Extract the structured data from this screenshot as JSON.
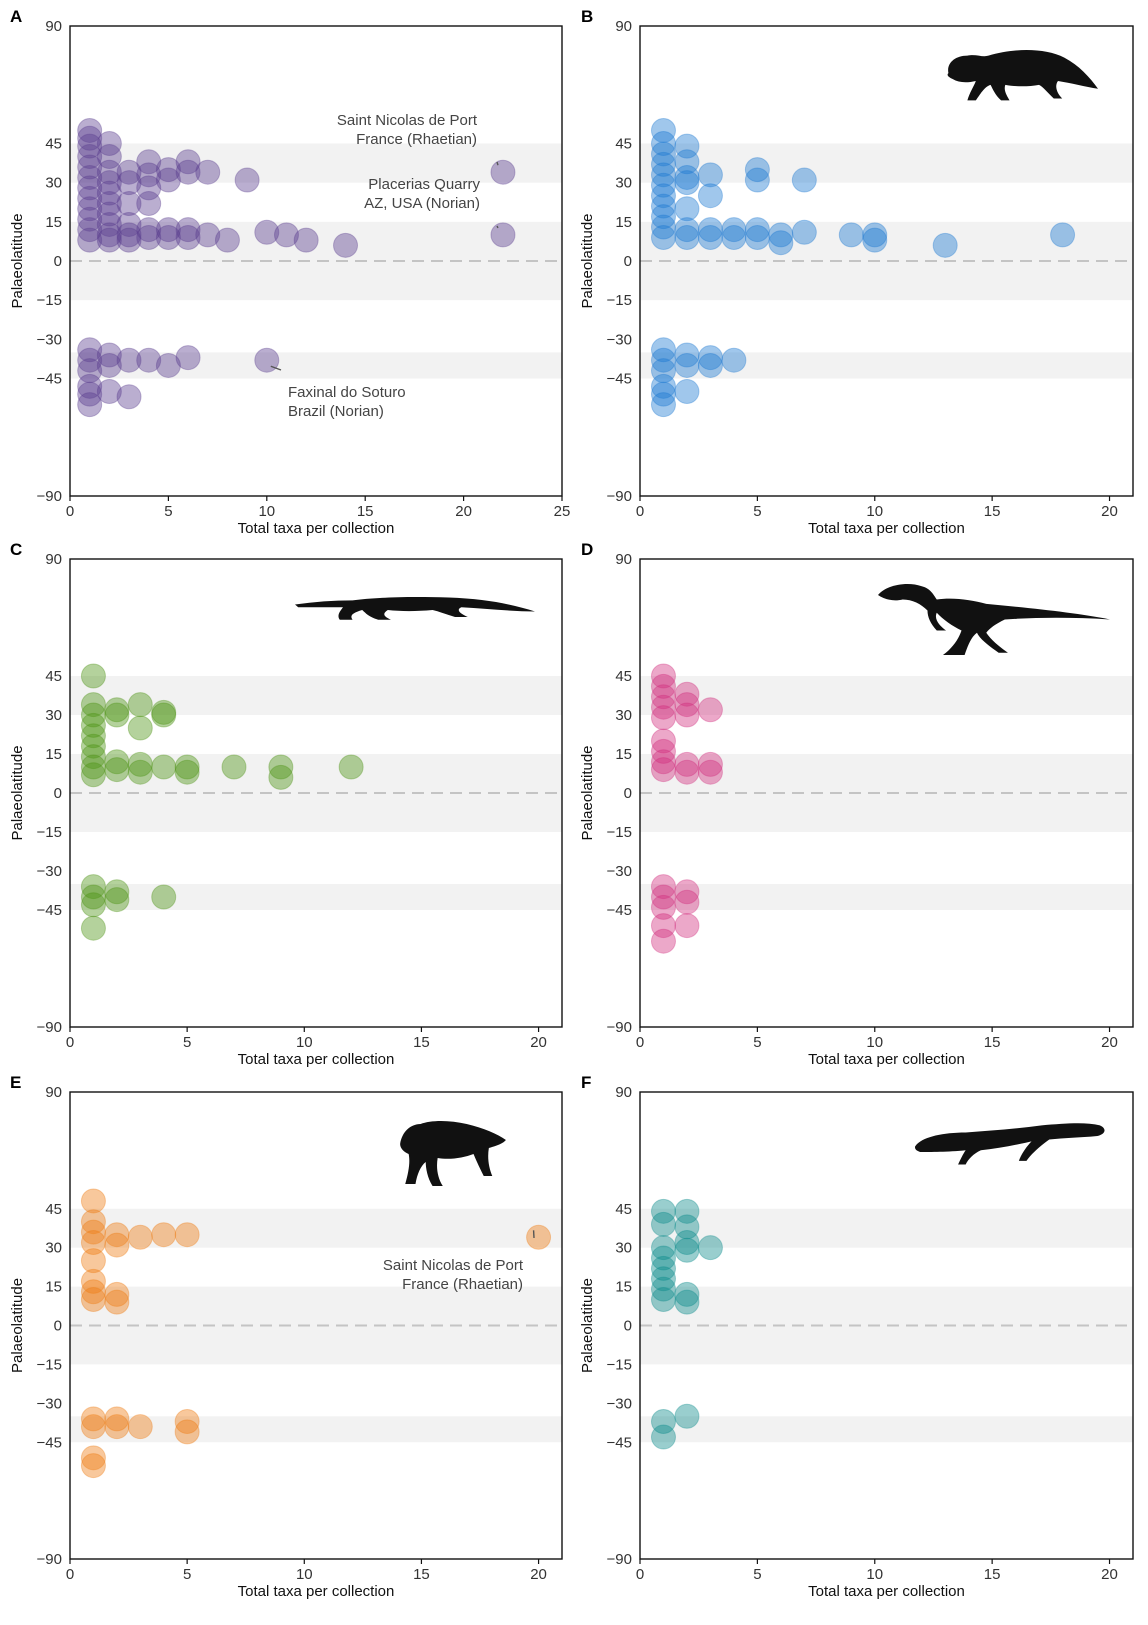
{
  "figure": {
    "series_colors": {
      "A": "#5b3f8e",
      "B": "#1c79d2",
      "C": "#4d9313",
      "D": "#d22f7e",
      "E": "#ef7b12",
      "F": "#0b8b8b"
    },
    "band_color": "#f2f2f2"
  },
  "chart_data": [
    {
      "panel": "A",
      "type": "scatter",
      "xlabel": "Total taxa per collection",
      "ylabel": "Palaeolatitude",
      "xlim": [
        0,
        25
      ],
      "ylim": [
        -90,
        90
      ],
      "xticks": [
        0,
        5,
        10,
        15,
        20,
        25
      ],
      "yticks": [
        90,
        45,
        30,
        15,
        0,
        -15,
        -30,
        -45,
        -90
      ],
      "bands": [
        [
          30,
          45
        ],
        [
          0,
          15
        ],
        [
          -15,
          0
        ],
        [
          -45,
          -35
        ]
      ],
      "silhouette": "none",
      "points": [
        {
          "x": 1,
          "y": 50
        },
        {
          "x": 1,
          "y": 47
        },
        {
          "x": 1,
          "y": 44
        },
        {
          "x": 1,
          "y": 40
        },
        {
          "x": 1,
          "y": 36
        },
        {
          "x": 1,
          "y": 32
        },
        {
          "x": 1,
          "y": 28
        },
        {
          "x": 1,
          "y": 24
        },
        {
          "x": 1,
          "y": 20
        },
        {
          "x": 1,
          "y": 16
        },
        {
          "x": 1,
          "y": 12
        },
        {
          "x": 1,
          "y": 8
        },
        {
          "x": 2,
          "y": 45
        },
        {
          "x": 2,
          "y": 40
        },
        {
          "x": 2,
          "y": 34
        },
        {
          "x": 2,
          "y": 30
        },
        {
          "x": 2,
          "y": 26
        },
        {
          "x": 2,
          "y": 22
        },
        {
          "x": 2,
          "y": 18
        },
        {
          "x": 2,
          "y": 14
        },
        {
          "x": 2,
          "y": 10
        },
        {
          "x": 2,
          "y": 8
        },
        {
          "x": 3,
          "y": 34
        },
        {
          "x": 3,
          "y": 30
        },
        {
          "x": 3,
          "y": 22
        },
        {
          "x": 3,
          "y": 14
        },
        {
          "x": 3,
          "y": 10
        },
        {
          "x": 3,
          "y": 8
        },
        {
          "x": 4,
          "y": 38
        },
        {
          "x": 4,
          "y": 33
        },
        {
          "x": 4,
          "y": 28
        },
        {
          "x": 4,
          "y": 22
        },
        {
          "x": 4,
          "y": 12
        },
        {
          "x": 4,
          "y": 9
        },
        {
          "x": 5,
          "y": 35
        },
        {
          "x": 5,
          "y": 31
        },
        {
          "x": 5,
          "y": 12
        },
        {
          "x": 5,
          "y": 9
        },
        {
          "x": 6,
          "y": 38
        },
        {
          "x": 6,
          "y": 34
        },
        {
          "x": 6,
          "y": 12
        },
        {
          "x": 6,
          "y": 9
        },
        {
          "x": 7,
          "y": 34
        },
        {
          "x": 7,
          "y": 10
        },
        {
          "x": 8,
          "y": 8
        },
        {
          "x": 9,
          "y": 31
        },
        {
          "x": 10,
          "y": 11
        },
        {
          "x": 11,
          "y": 10
        },
        {
          "x": 12,
          "y": 8
        },
        {
          "x": 14,
          "y": 6
        },
        {
          "x": 22,
          "y": 34
        },
        {
          "x": 22,
          "y": 10
        },
        {
          "x": 1,
          "y": -34
        },
        {
          "x": 1,
          "y": -38
        },
        {
          "x": 1,
          "y": -42
        },
        {
          "x": 1,
          "y": -48
        },
        {
          "x": 1,
          "y": -51
        },
        {
          "x": 1,
          "y": -55
        },
        {
          "x": 2,
          "y": -36
        },
        {
          "x": 2,
          "y": -40
        },
        {
          "x": 2,
          "y": -50
        },
        {
          "x": 3,
          "y": -38
        },
        {
          "x": 3,
          "y": -52
        },
        {
          "x": 4,
          "y": -38
        },
        {
          "x": 5,
          "y": -40
        },
        {
          "x": 6,
          "y": -37
        },
        {
          "x": 10,
          "y": -38
        }
      ],
      "annotations": [
        {
          "lines": [
            "Saint Nicolas de Port",
            "France (Rhaetian)"
          ],
          "target_x": 22,
          "target_y": 34
        },
        {
          "lines": [
            "Placerias Quarry",
            "AZ, USA (Norian)"
          ],
          "target_x": 22,
          "target_y": 10
        },
        {
          "lines": [
            "Faxinal do Soturo",
            "Brazil (Norian)"
          ],
          "target_x": 10,
          "target_y": -38
        }
      ]
    },
    {
      "panel": "B",
      "type": "scatter",
      "xlabel": "Total taxa per collection",
      "ylabel": "Palaeolatitude",
      "xlim": [
        0,
        21
      ],
      "ylim": [
        -90,
        90
      ],
      "xticks": [
        0,
        5,
        10,
        15,
        20
      ],
      "yticks": [
        90,
        45,
        30,
        15,
        0,
        -15,
        -30,
        -45,
        -90
      ],
      "bands": [
        [
          30,
          45
        ],
        [
          0,
          15
        ],
        [
          -15,
          0
        ],
        [
          -45,
          -35
        ]
      ],
      "silhouette": "dicynodont",
      "points": [
        {
          "x": 1,
          "y": 50
        },
        {
          "x": 1,
          "y": 45
        },
        {
          "x": 1,
          "y": 41
        },
        {
          "x": 1,
          "y": 37
        },
        {
          "x": 1,
          "y": 33
        },
        {
          "x": 1,
          "y": 29
        },
        {
          "x": 1,
          "y": 25
        },
        {
          "x": 1,
          "y": 21
        },
        {
          "x": 1,
          "y": 17
        },
        {
          "x": 1,
          "y": 13
        },
        {
          "x": 1,
          "y": 9
        },
        {
          "x": 2,
          "y": 44
        },
        {
          "x": 2,
          "y": 38
        },
        {
          "x": 2,
          "y": 32
        },
        {
          "x": 2,
          "y": 30
        },
        {
          "x": 2,
          "y": 20
        },
        {
          "x": 2,
          "y": 12
        },
        {
          "x": 2,
          "y": 9
        },
        {
          "x": 3,
          "y": 33
        },
        {
          "x": 3,
          "y": 25
        },
        {
          "x": 3,
          "y": 12
        },
        {
          "x": 3,
          "y": 9
        },
        {
          "x": 4,
          "y": 12
        },
        {
          "x": 4,
          "y": 9
        },
        {
          "x": 5,
          "y": 35
        },
        {
          "x": 5,
          "y": 31
        },
        {
          "x": 5,
          "y": 12
        },
        {
          "x": 5,
          "y": 9
        },
        {
          "x": 6,
          "y": 10
        },
        {
          "x": 6,
          "y": 7
        },
        {
          "x": 7,
          "y": 31
        },
        {
          "x": 7,
          "y": 11
        },
        {
          "x": 9,
          "y": 10
        },
        {
          "x": 10,
          "y": 10
        },
        {
          "x": 10,
          "y": 8
        },
        {
          "x": 13,
          "y": 6
        },
        {
          "x": 18,
          "y": 10
        },
        {
          "x": 1,
          "y": -34
        },
        {
          "x": 1,
          "y": -38
        },
        {
          "x": 1,
          "y": -42
        },
        {
          "x": 1,
          "y": -48
        },
        {
          "x": 1,
          "y": -51
        },
        {
          "x": 1,
          "y": -55
        },
        {
          "x": 2,
          "y": -36
        },
        {
          "x": 2,
          "y": -40
        },
        {
          "x": 2,
          "y": -50
        },
        {
          "x": 3,
          "y": -37
        },
        {
          "x": 3,
          "y": -40
        },
        {
          "x": 4,
          "y": -38
        }
      ],
      "annotations": []
    },
    {
      "panel": "C",
      "type": "scatter",
      "xlabel": "Total taxa per collection",
      "ylabel": "Palaeolatitude",
      "xlim": [
        0,
        21
      ],
      "ylim": [
        -90,
        90
      ],
      "xticks": [
        0,
        5,
        10,
        15,
        20
      ],
      "yticks": [
        90,
        45,
        30,
        15,
        0,
        -15,
        -30,
        -45,
        -90
      ],
      "bands": [
        [
          30,
          45
        ],
        [
          0,
          15
        ],
        [
          -15,
          0
        ],
        [
          -45,
          -35
        ]
      ],
      "silhouette": "phytosaur",
      "points": [
        {
          "x": 1,
          "y": 45
        },
        {
          "x": 1,
          "y": 34
        },
        {
          "x": 1,
          "y": 30
        },
        {
          "x": 1,
          "y": 26
        },
        {
          "x": 1,
          "y": 22
        },
        {
          "x": 1,
          "y": 18
        },
        {
          "x": 1,
          "y": 14
        },
        {
          "x": 1,
          "y": 10
        },
        {
          "x": 1,
          "y": 7
        },
        {
          "x": 2,
          "y": 32
        },
        {
          "x": 2,
          "y": 30
        },
        {
          "x": 2,
          "y": 12
        },
        {
          "x": 2,
          "y": 9
        },
        {
          "x": 3,
          "y": 34
        },
        {
          "x": 3,
          "y": 25
        },
        {
          "x": 3,
          "y": 11
        },
        {
          "x": 3,
          "y": 8
        },
        {
          "x": 4,
          "y": 31
        },
        {
          "x": 4,
          "y": 30
        },
        {
          "x": 4,
          "y": 10
        },
        {
          "x": 5,
          "y": 10
        },
        {
          "x": 5,
          "y": 8
        },
        {
          "x": 7,
          "y": 10
        },
        {
          "x": 9,
          "y": 10
        },
        {
          "x": 9,
          "y": 6
        },
        {
          "x": 12,
          "y": 10
        },
        {
          "x": 1,
          "y": -36
        },
        {
          "x": 1,
          "y": -40
        },
        {
          "x": 1,
          "y": -43
        },
        {
          "x": 1,
          "y": -52
        },
        {
          "x": 2,
          "y": -38
        },
        {
          "x": 2,
          "y": -41
        },
        {
          "x": 4,
          "y": -40
        }
      ],
      "annotations": []
    },
    {
      "panel": "D",
      "type": "scatter",
      "xlabel": "Total taxa per collection",
      "ylabel": "Palaeolatitude",
      "xlim": [
        0,
        21
      ],
      "ylim": [
        -90,
        90
      ],
      "xticks": [
        0,
        5,
        10,
        15,
        20
      ],
      "yticks": [
        90,
        45,
        30,
        15,
        0,
        -15,
        -30,
        -45,
        -90
      ],
      "bands": [
        [
          30,
          45
        ],
        [
          0,
          15
        ],
        [
          -15,
          0
        ],
        [
          -45,
          -35
        ]
      ],
      "silhouette": "theropod",
      "points": [
        {
          "x": 1,
          "y": 45
        },
        {
          "x": 1,
          "y": 41
        },
        {
          "x": 1,
          "y": 37
        },
        {
          "x": 1,
          "y": 33
        },
        {
          "x": 1,
          "y": 29
        },
        {
          "x": 1,
          "y": 20
        },
        {
          "x": 1,
          "y": 16
        },
        {
          "x": 1,
          "y": 12
        },
        {
          "x": 1,
          "y": 9
        },
        {
          "x": 2,
          "y": 38
        },
        {
          "x": 2,
          "y": 34
        },
        {
          "x": 2,
          "y": 30
        },
        {
          "x": 2,
          "y": 11
        },
        {
          "x": 2,
          "y": 8
        },
        {
          "x": 3,
          "y": 32
        },
        {
          "x": 3,
          "y": 11
        },
        {
          "x": 3,
          "y": 8
        },
        {
          "x": 1,
          "y": -36
        },
        {
          "x": 1,
          "y": -40
        },
        {
          "x": 1,
          "y": -44
        },
        {
          "x": 1,
          "y": -51
        },
        {
          "x": 1,
          "y": -57
        },
        {
          "x": 2,
          "y": -38
        },
        {
          "x": 2,
          "y": -42
        },
        {
          "x": 2,
          "y": -51
        }
      ],
      "annotations": []
    },
    {
      "panel": "E",
      "type": "scatter",
      "xlabel": "Total taxa per collection",
      "ylabel": "Palaeolatitude",
      "xlim": [
        0,
        21
      ],
      "ylim": [
        -90,
        90
      ],
      "xticks": [
        0,
        5,
        10,
        15,
        20
      ],
      "yticks": [
        90,
        45,
        30,
        15,
        0,
        -15,
        -30,
        -45,
        -90
      ],
      "bands": [
        [
          30,
          45
        ],
        [
          0,
          15
        ],
        [
          -15,
          0
        ],
        [
          -45,
          -35
        ]
      ],
      "silhouette": "aetosaur",
      "points": [
        {
          "x": 1,
          "y": 48
        },
        {
          "x": 1,
          "y": 40
        },
        {
          "x": 1,
          "y": 36
        },
        {
          "x": 1,
          "y": 32
        },
        {
          "x": 1,
          "y": 25
        },
        {
          "x": 1,
          "y": 17
        },
        {
          "x": 1,
          "y": 13
        },
        {
          "x": 1,
          "y": 10
        },
        {
          "x": 2,
          "y": 35
        },
        {
          "x": 2,
          "y": 31
        },
        {
          "x": 2,
          "y": 12
        },
        {
          "x": 2,
          "y": 9
        },
        {
          "x": 3,
          "y": 34
        },
        {
          "x": 4,
          "y": 35
        },
        {
          "x": 5,
          "y": 35
        },
        {
          "x": 20,
          "y": 34
        },
        {
          "x": 1,
          "y": -36
        },
        {
          "x": 1,
          "y": -39
        },
        {
          "x": 1,
          "y": -51
        },
        {
          "x": 1,
          "y": -54
        },
        {
          "x": 2,
          "y": -36
        },
        {
          "x": 2,
          "y": -39
        },
        {
          "x": 3,
          "y": -39
        },
        {
          "x": 5,
          "y": -37
        },
        {
          "x": 5,
          "y": -41
        }
      ],
      "annotations": [
        {
          "lines": [
            "Saint Nicolas de Port",
            "France (Rhaetian)"
          ],
          "target_x": 20,
          "target_y": 34
        }
      ]
    },
    {
      "panel": "F",
      "type": "scatter",
      "xlabel": "Total taxa per collection",
      "ylabel": "Palaeolatitude",
      "xlim": [
        0,
        21
      ],
      "ylim": [
        -90,
        90
      ],
      "xticks": [
        0,
        5,
        10,
        15,
        20
      ],
      "yticks": [
        90,
        45,
        30,
        15,
        0,
        -15,
        -30,
        -45,
        -90
      ],
      "bands": [
        [
          30,
          45
        ],
        [
          0,
          15
        ],
        [
          -15,
          0
        ],
        [
          -45,
          -35
        ]
      ],
      "silhouette": "temnospondyl",
      "points": [
        {
          "x": 1,
          "y": 44
        },
        {
          "x": 1,
          "y": 39
        },
        {
          "x": 1,
          "y": 30
        },
        {
          "x": 1,
          "y": 26
        },
        {
          "x": 1,
          "y": 22
        },
        {
          "x": 1,
          "y": 18
        },
        {
          "x": 1,
          "y": 14
        },
        {
          "x": 1,
          "y": 10
        },
        {
          "x": 2,
          "y": 44
        },
        {
          "x": 2,
          "y": 38
        },
        {
          "x": 2,
          "y": 32
        },
        {
          "x": 2,
          "y": 29
        },
        {
          "x": 2,
          "y": 12
        },
        {
          "x": 2,
          "y": 9
        },
        {
          "x": 3,
          "y": 30
        },
        {
          "x": 1,
          "y": -37
        },
        {
          "x": 1,
          "y": -43
        },
        {
          "x": 2,
          "y": -35
        }
      ],
      "annotations": []
    }
  ]
}
